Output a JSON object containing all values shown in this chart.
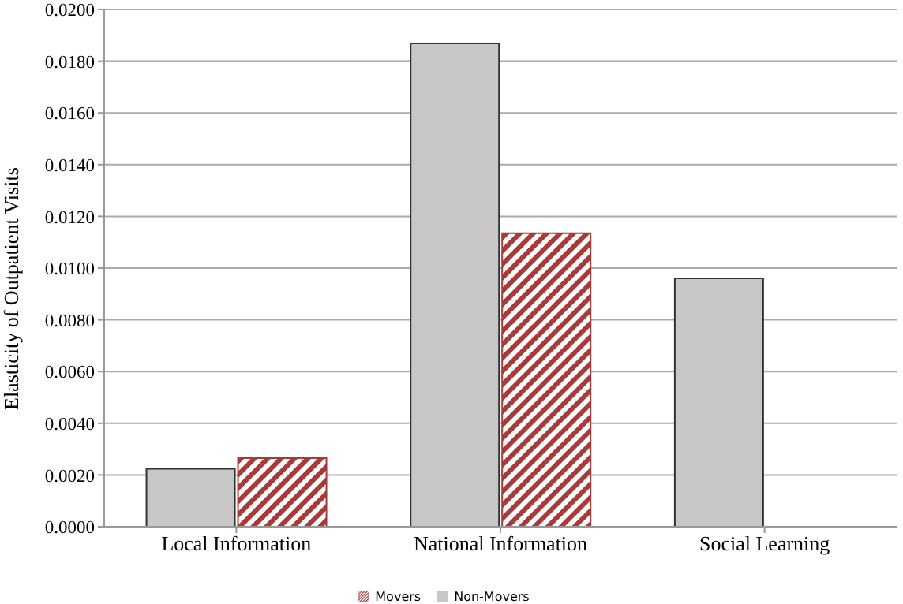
{
  "chart_data": {
    "type": "bar",
    "ylabel": "Elasticity of Outpatient Visits",
    "categories": [
      "Local Information",
      "National Information",
      "Social Learning"
    ],
    "series": [
      {
        "name": "Non-Movers",
        "color": "#c8c6c6",
        "values": [
          0.00224,
          0.01869,
          0.0096
        ]
      },
      {
        "name": "Movers",
        "color": "#a83a3a",
        "values": [
          0.00265,
          0.01135,
          null
        ]
      }
    ],
    "ylim": [
      0,
      0.02
    ],
    "yticks": [
      {
        "value": 0,
        "label": "0.0000"
      },
      {
        "value": 0.002,
        "label": "0.0020"
      },
      {
        "value": 0.004,
        "label": "0.0040"
      },
      {
        "value": 0.006,
        "label": "0.0060"
      },
      {
        "value": 0.008,
        "label": "0.0080"
      },
      {
        "value": 0.01,
        "label": "0.0100"
      },
      {
        "value": 0.012,
        "label": "0.0120"
      },
      {
        "value": 0.014,
        "label": "0.0140"
      },
      {
        "value": 0.016,
        "label": "0.0160"
      },
      {
        "value": 0.018,
        "label": "0.0180"
      },
      {
        "value": 0.02,
        "label": "0.0200"
      }
    ],
    "grid": "y",
    "legend": "bottom"
  }
}
